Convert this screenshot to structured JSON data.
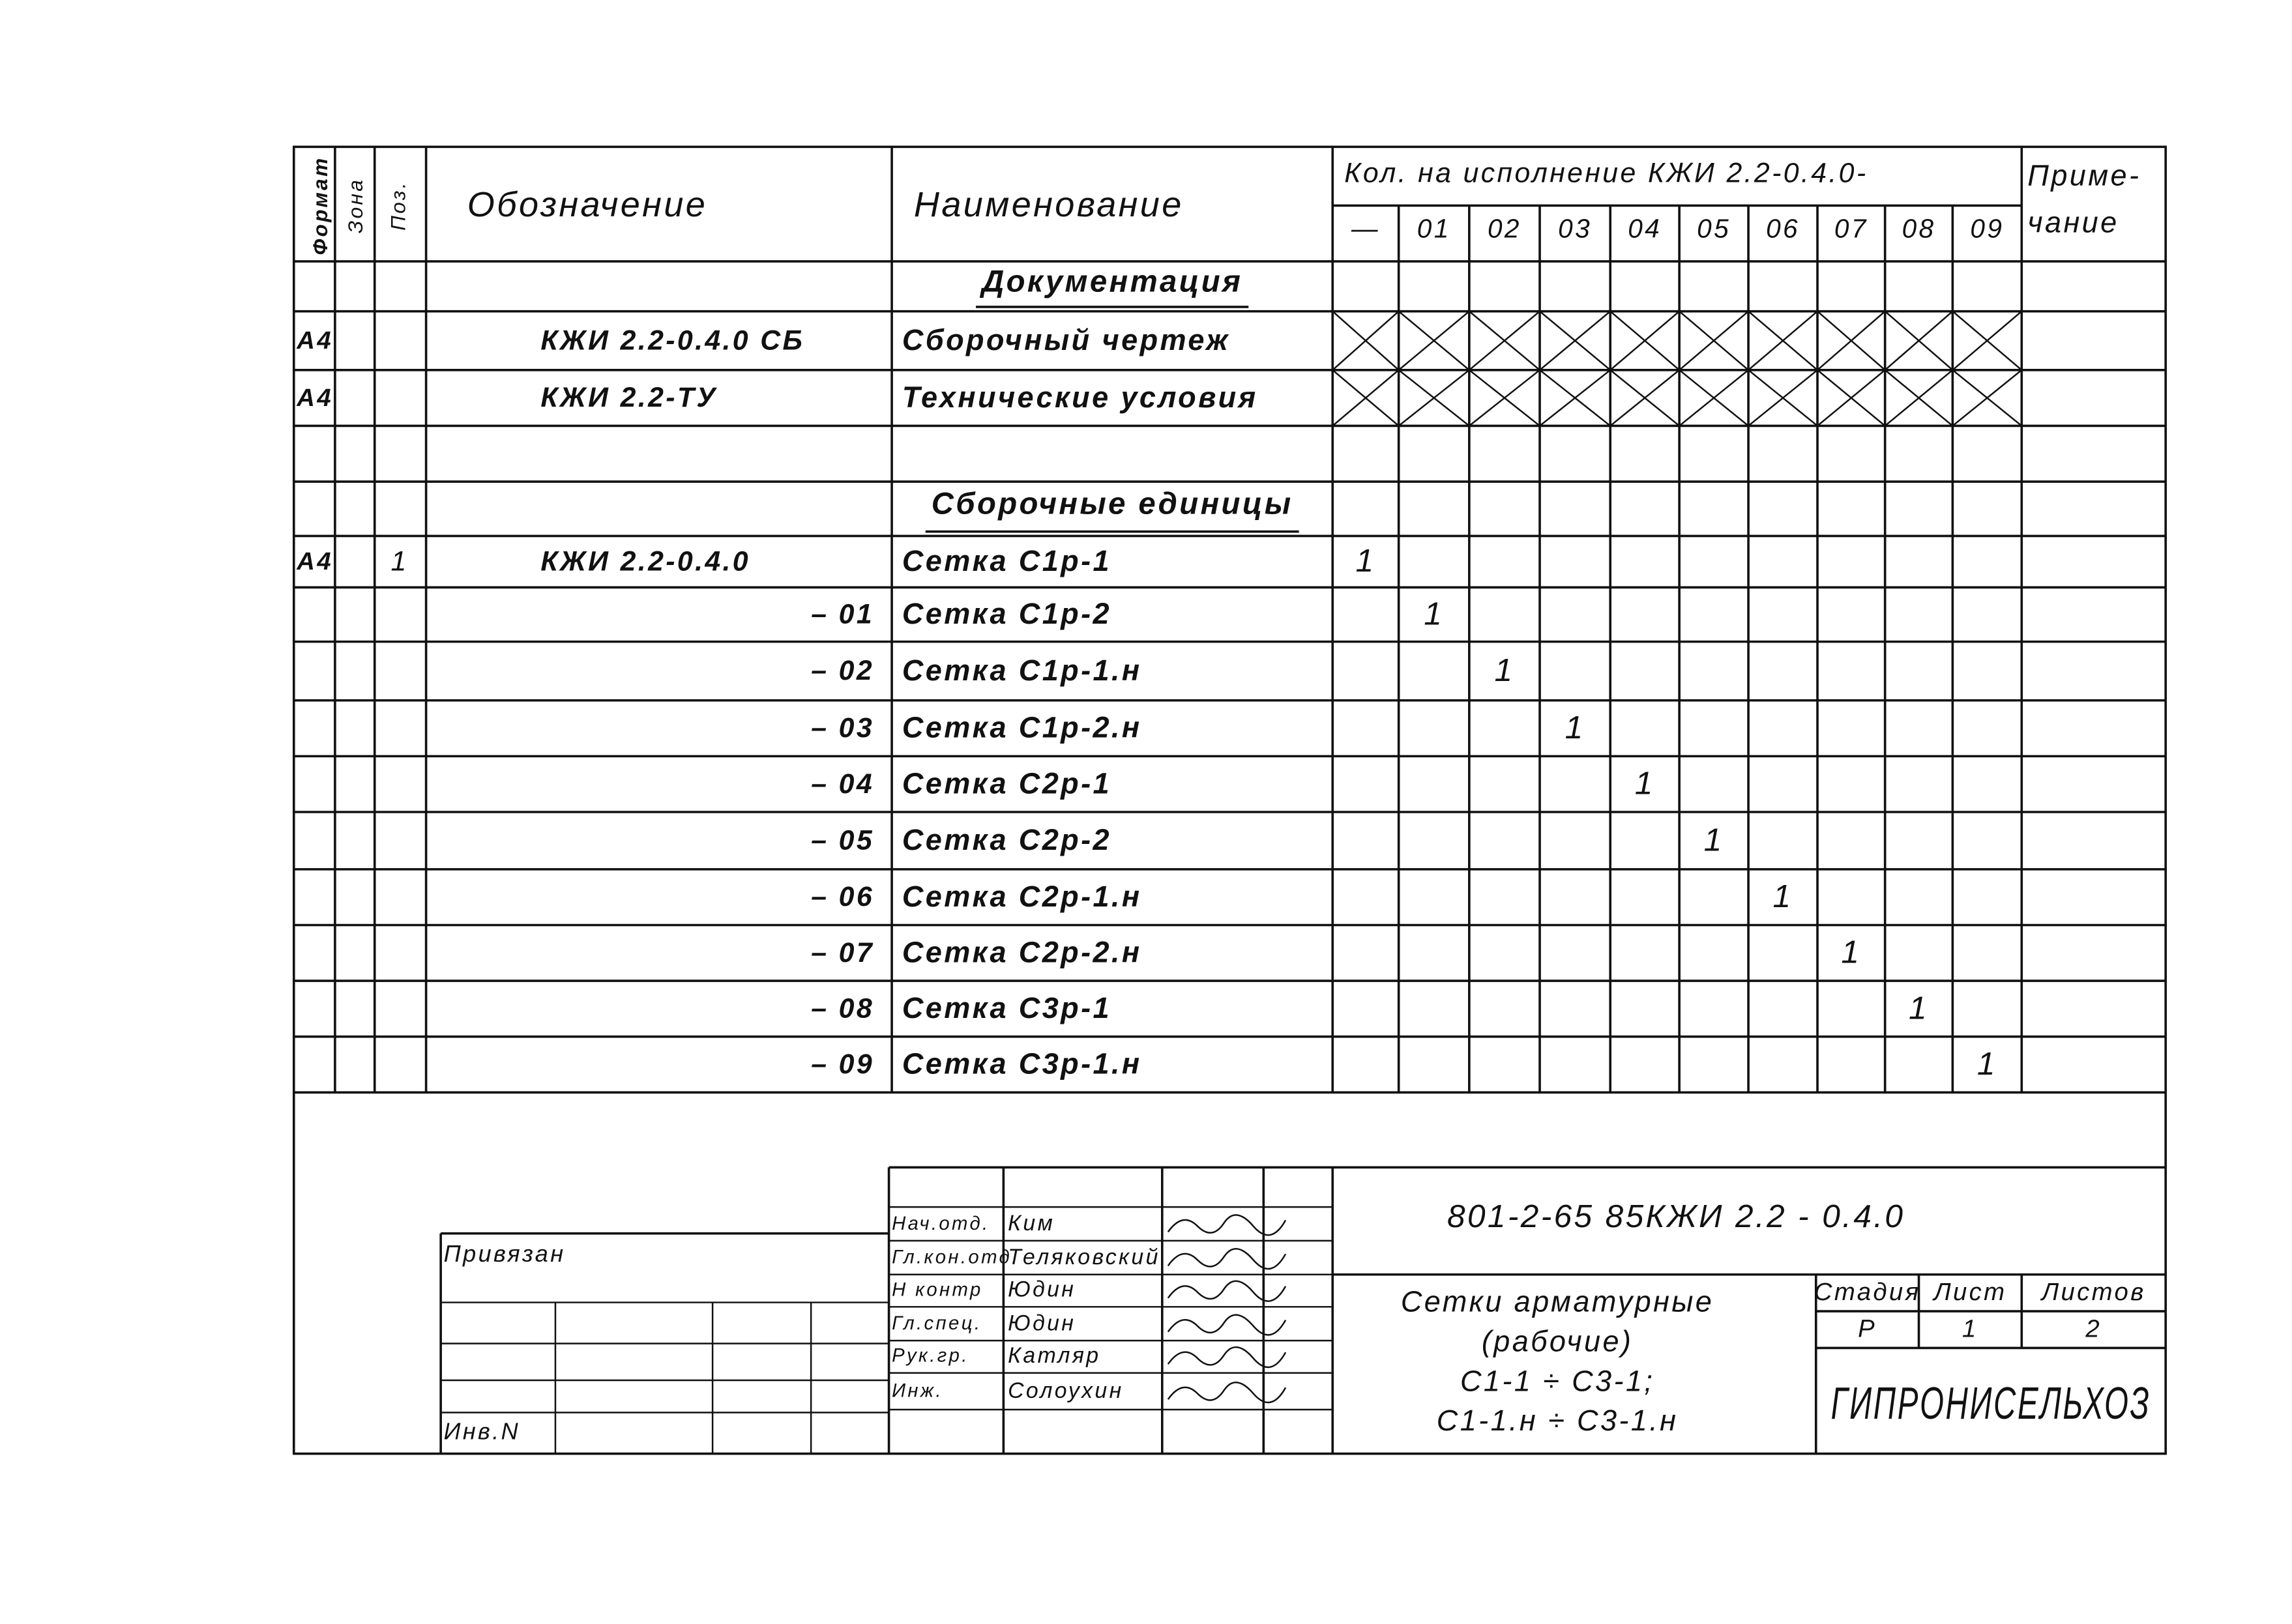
{
  "header": {
    "format": "Формат",
    "zone": "Зона",
    "pos": "Поз.",
    "designation": "Обозначение",
    "name": "Наименование",
    "qty_title": "Кол. на исполнение КЖИ 2.2-0.4.0-",
    "variants": [
      "—",
      "01",
      "02",
      "03",
      "04",
      "05",
      "06",
      "07",
      "08",
      "09"
    ],
    "note": [
      "Приме-",
      "чание"
    ]
  },
  "rows": [
    {
      "heading": "Документация"
    },
    {
      "format": "А4",
      "designation": "КЖИ 2.2-0.4.0 СБ",
      "name": "Сборочный чертеж",
      "crossed": true
    },
    {
      "format": "А4",
      "designation": "КЖИ 2.2-ТУ",
      "name": "Технические условия",
      "crossed": true
    },
    {},
    {
      "heading": "Сборочные единицы"
    },
    {
      "format": "А4",
      "pos": "1",
      "designation": "КЖИ 2.2-0.4.0",
      "name": "Сетка С1р-1",
      "qty": [
        "1",
        null,
        null,
        null,
        null,
        null,
        null,
        null,
        null,
        null
      ]
    },
    {
      "designation": "– 01",
      "name": "Сетка С1р-2",
      "qty": [
        null,
        "1",
        null,
        null,
        null,
        null,
        null,
        null,
        null,
        null
      ]
    },
    {
      "designation": "– 02",
      "name": "Сетка С1р-1.н",
      "qty": [
        null,
        null,
        "1",
        null,
        null,
        null,
        null,
        null,
        null,
        null
      ]
    },
    {
      "designation": "– 03",
      "name": "Сетка С1р-2.н",
      "qty": [
        null,
        null,
        null,
        "1",
        null,
        null,
        null,
        null,
        null,
        null
      ]
    },
    {
      "designation": "– 04",
      "name": "Сетка С2р-1",
      "qty": [
        null,
        null,
        null,
        null,
        "1",
        null,
        null,
        null,
        null,
        null
      ]
    },
    {
      "designation": "– 05",
      "name": "Сетка С2р-2",
      "qty": [
        null,
        null,
        null,
        null,
        null,
        "1",
        null,
        null,
        null,
        null
      ]
    },
    {
      "designation": "– 06",
      "name": "Сетка С2р-1.н",
      "qty": [
        null,
        null,
        null,
        null,
        null,
        null,
        "1",
        null,
        null,
        null
      ]
    },
    {
      "designation": "– 07",
      "name": "Сетка С2р-2.н",
      "qty": [
        null,
        null,
        null,
        null,
        null,
        null,
        null,
        "1",
        null,
        null
      ]
    },
    {
      "designation": "– 08",
      "name": "Сетка С3р-1",
      "qty": [
        null,
        null,
        null,
        null,
        null,
        null,
        null,
        null,
        "1",
        null
      ]
    },
    {
      "designation": "– 09",
      "name": "Сетка С3р-1.н",
      "qty": [
        null,
        null,
        null,
        null,
        null,
        null,
        null,
        null,
        null,
        "1"
      ]
    }
  ],
  "title_block": {
    "bound": "Привязан",
    "inventory": "Инв.N",
    "stamp": [
      {
        "role": "Нач.отд.",
        "name": "Ким"
      },
      {
        "role": "Гл.кон.отд.",
        "name": "Теляковский"
      },
      {
        "role": "Н контр",
        "name": "Юдин"
      },
      {
        "role": "Гл.спец.",
        "name": "Юдин"
      },
      {
        "role": "Рук.гр.",
        "name": "Катляр"
      },
      {
        "role": "Инж.",
        "name": "Солоухин"
      }
    ],
    "document_code": "801-2-65 85КЖИ 2.2 - 0.4.0",
    "title": [
      "Сетки арматурные",
      "(рабочие)",
      "С1-1 ÷ С3-1;",
      "С1-1.н ÷ С3-1.н"
    ],
    "stage_headers": [
      "Стадия",
      "Лист",
      "Листов"
    ],
    "stage_values": [
      "Р",
      "1",
      "2"
    ],
    "organization": "ГИПРОНИСЕЛЬХОЗ"
  }
}
